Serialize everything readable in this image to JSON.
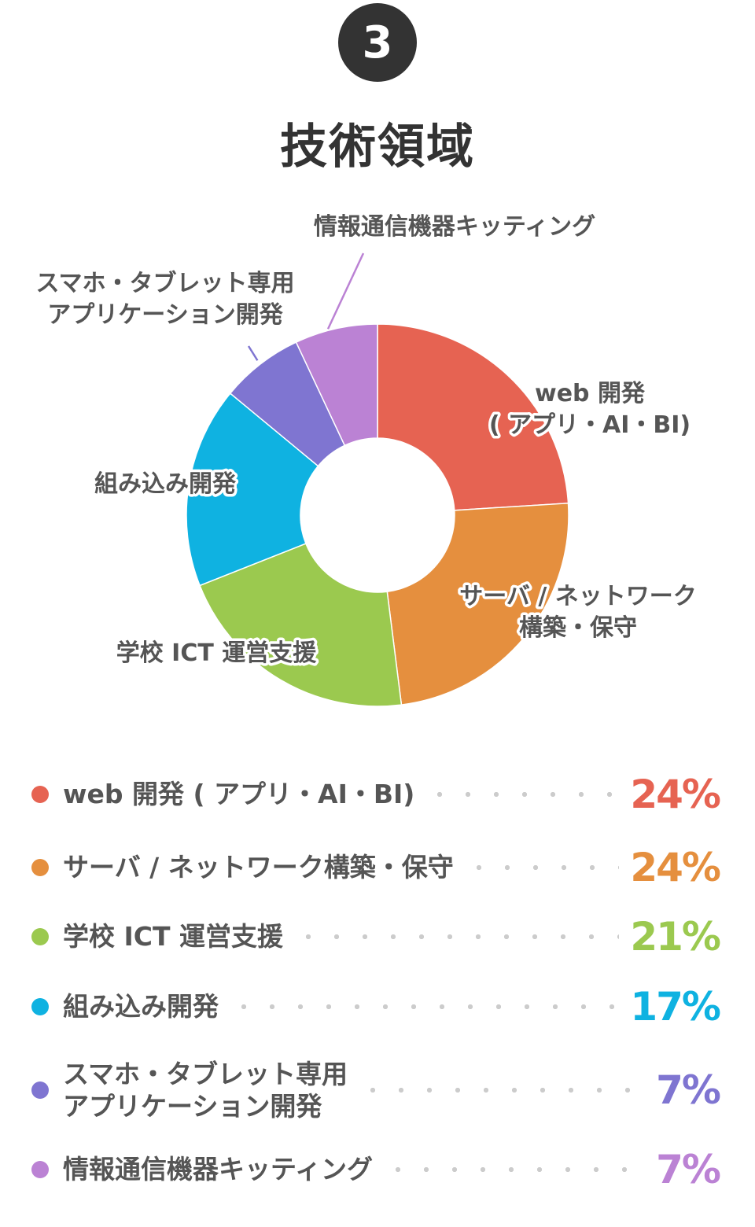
{
  "header": {
    "number": "3",
    "title": "技術領域"
  },
  "colors": {
    "web": "#e66352",
    "server": "#e58f3e",
    "school": "#9bc94f",
    "embedded": "#0fb2e1",
    "mobile": "#7f75d1",
    "kitting": "#bb82d4",
    "text": "#555555",
    "badge": "#333333"
  },
  "chart_data": {
    "type": "pie",
    "donut": true,
    "categories": [
      "web 開発 ( アプリ・AI・BI)",
      "サーバ / ネットワーク構築・保守",
      "学校 ICT 運営支援",
      "組み込み開発",
      "スマホ・タブレット専用アプリケーション開発",
      "情報通信機器キッティング"
    ],
    "values": [
      24,
      24,
      21,
      17,
      7,
      7
    ],
    "unit": "%",
    "slice_labels": [
      [
        "web 開発",
        "( アプリ・AI・BI)"
      ],
      [
        "サーバ / ネットワーク",
        "構築・保守"
      ],
      [
        "学校 ICT 運営支援"
      ],
      [
        "組み込み開発"
      ],
      [
        "スマホ・タブレット専用",
        "アプリケーション開発"
      ],
      [
        "情報通信機器キッティング"
      ]
    ],
    "colors": [
      "#e66352",
      "#e58f3e",
      "#9bc94f",
      "#0fb2e1",
      "#7f75d1",
      "#bb82d4"
    ]
  },
  "legend": [
    {
      "label": "web 開発 ( アプリ・AI・BI)",
      "value": "24%",
      "color": "#e66352"
    },
    {
      "label": "サーバ / ネットワーク構築・保守",
      "value": "24%",
      "color": "#e58f3e"
    },
    {
      "label": "学校 ICT 運営支援",
      "value": "21%",
      "color": "#9bc94f"
    },
    {
      "label": "組み込み開発",
      "value": "17%",
      "color": "#0fb2e1"
    },
    {
      "label": "スマホ・タブレット専用\nアプリケーション開発",
      "value": "7%",
      "color": "#7f75d1"
    },
    {
      "label": "情報通信機器キッティング",
      "value": "7%",
      "color": "#bb82d4"
    }
  ]
}
